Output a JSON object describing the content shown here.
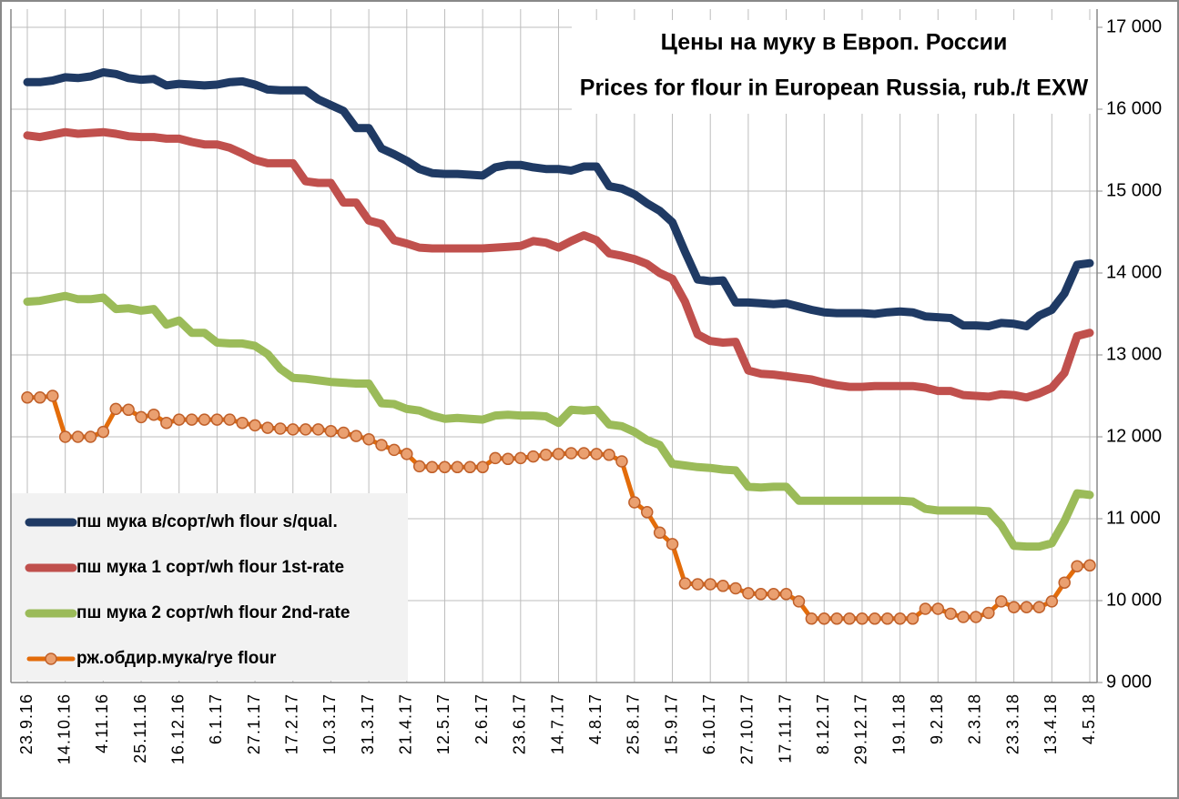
{
  "chart_data": {
    "type": "line",
    "title": "Цены на муку в Европ. России",
    "subtitle": "Prices for flour in European Russia, rub./t EXW",
    "categories": [
      "23.9.16",
      null,
      null,
      "14.10.16",
      null,
      null,
      "4.11.16",
      null,
      null,
      "25.11.16",
      null,
      null,
      "16.12.16",
      null,
      null,
      "6.1.17",
      null,
      null,
      "27.1.17",
      null,
      null,
      "17.2.17",
      null,
      null,
      "10.3.17",
      null,
      null,
      "31.3.17",
      null,
      null,
      "21.4.17",
      null,
      null,
      "12.5.17",
      null,
      null,
      "2.6.17",
      null,
      null,
      "23.6.17",
      null,
      null,
      "14.7.17",
      null,
      null,
      "4.8.17",
      null,
      null,
      "25.8.17",
      null,
      null,
      "15.9.17",
      null,
      null,
      "6.10.17",
      null,
      null,
      "27.10.17",
      null,
      null,
      "17.11.17",
      null,
      null,
      "8.12.17",
      null,
      null,
      "29.12.17",
      null,
      null,
      "19.1.18",
      null,
      null,
      "9.2.18",
      null,
      null,
      "2.3.18",
      null,
      null,
      "23.3.18",
      null,
      null,
      "13.4.18",
      null,
      null,
      "4.5.18"
    ],
    "series": [
      {
        "name": "пш мука в/сорт/wh flour s/qual.",
        "color": "#1f3a64",
        "markers": false,
        "values": [
          16330,
          16330,
          16350,
          16390,
          16380,
          16400,
          16450,
          16430,
          16380,
          16360,
          16370,
          16290,
          16310,
          16300,
          16290,
          16300,
          16330,
          16340,
          16300,
          16240,
          16230,
          16230,
          16230,
          16120,
          16050,
          15980,
          15770,
          15770,
          15520,
          15450,
          15370,
          15270,
          15220,
          15210,
          15210,
          15200,
          15190,
          15290,
          15320,
          15320,
          15290,
          15270,
          15270,
          15250,
          15300,
          15300,
          15060,
          15030,
          14960,
          14850,
          14760,
          14620,
          14260,
          13920,
          13900,
          13910,
          13640,
          13640,
          13630,
          13620,
          13630,
          13590,
          13550,
          13520,
          13510,
          13510,
          13510,
          13500,
          13520,
          13530,
          13520,
          13470,
          13460,
          13450,
          13360,
          13360,
          13350,
          13390,
          13380,
          13350,
          13480,
          13550,
          13750,
          14100,
          14120
        ]
      },
      {
        "name": "пш мука 1 сорт/wh flour 1st-rate",
        "color": "#c0504d",
        "markers": false,
        "values": [
          15680,
          15660,
          15690,
          15720,
          15700,
          15710,
          15720,
          15700,
          15670,
          15660,
          15660,
          15640,
          15640,
          15600,
          15570,
          15570,
          15530,
          15460,
          15380,
          15340,
          15340,
          15340,
          15120,
          15100,
          15100,
          14860,
          14860,
          14640,
          14600,
          14400,
          14360,
          14310,
          14300,
          14300,
          14300,
          14300,
          14300,
          14310,
          14320,
          14330,
          14390,
          14370,
          14310,
          14390,
          14460,
          14400,
          14240,
          14210,
          14170,
          14110,
          14000,
          13930,
          13650,
          13250,
          13170,
          13150,
          13160,
          12810,
          12770,
          12760,
          12740,
          12720,
          12700,
          12660,
          12630,
          12610,
          12610,
          12620,
          12620,
          12620,
          12620,
          12600,
          12560,
          12560,
          12510,
          12500,
          12490,
          12520,
          12510,
          12480,
          12530,
          12600,
          12780,
          13230,
          13270
        ]
      },
      {
        "name": "пш мука 2 сорт/wh flour 2nd-rate",
        "color": "#9bbb59",
        "markers": false,
        "values": [
          13650,
          13660,
          13690,
          13720,
          13680,
          13680,
          13700,
          13560,
          13570,
          13540,
          13560,
          13370,
          13420,
          13270,
          13270,
          13150,
          13140,
          13140,
          13110,
          13010,
          12830,
          12720,
          12710,
          12690,
          12670,
          12660,
          12650,
          12650,
          12410,
          12400,
          12340,
          12320,
          12260,
          12220,
          12230,
          12220,
          12210,
          12260,
          12270,
          12260,
          12260,
          12250,
          12170,
          12330,
          12320,
          12330,
          12150,
          12130,
          12060,
          11960,
          11900,
          11670,
          11650,
          11630,
          11620,
          11600,
          11590,
          11390,
          11380,
          11390,
          11390,
          11220,
          11220,
          11220,
          11220,
          11220,
          11220,
          11220,
          11220,
          11220,
          11210,
          11120,
          11100,
          11100,
          11100,
          11100,
          11090,
          10920,
          10670,
          10660,
          10660,
          10700,
          10970,
          11310,
          11290
        ]
      },
      {
        "name": "рж.обдир.мука/rye flour",
        "color": "#e36c0a",
        "markers": true,
        "values": [
          12480,
          12480,
          12500,
          12000,
          12000,
          12000,
          12060,
          12340,
          12330,
          12240,
          12270,
          12170,
          12210,
          12210,
          12210,
          12210,
          12210,
          12170,
          12140,
          12110,
          12100,
          12090,
          12090,
          12090,
          12070,
          12050,
          12010,
          11970,
          11900,
          11840,
          11790,
          11640,
          11630,
          11630,
          11630,
          11630,
          11630,
          11740,
          11730,
          11740,
          11760,
          11780,
          11790,
          11800,
          11800,
          11790,
          11780,
          11700,
          11200,
          11080,
          10830,
          10690,
          10210,
          10200,
          10200,
          10180,
          10150,
          10090,
          10080,
          10080,
          10080,
          9990,
          9780,
          9780,
          9780,
          9780,
          9780,
          9780,
          9780,
          9780,
          9780,
          9900,
          9900,
          9840,
          9800,
          9800,
          9850,
          9990,
          9920,
          9920,
          9920,
          9990,
          10220,
          10420,
          10430
        ]
      }
    ],
    "ylim": [
      9000,
      17000
    ],
    "yticks": [
      {
        "value": 9000,
        "label": "9 000"
      },
      {
        "value": 10000,
        "label": "10 000"
      },
      {
        "value": 11000,
        "label": "11 000"
      },
      {
        "value": 12000,
        "label": "12 000"
      },
      {
        "value": 13000,
        "label": "13 000"
      },
      {
        "value": 14000,
        "label": "14 000"
      },
      {
        "value": 15000,
        "label": "15 000"
      },
      {
        "value": 16000,
        "label": "16 000"
      },
      {
        "value": 17000,
        "label": "17 000"
      }
    ],
    "grid": true,
    "legend": "lower left"
  }
}
